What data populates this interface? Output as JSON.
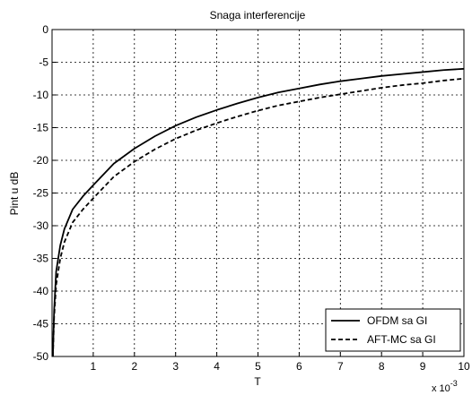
{
  "chart_data": {
    "type": "line",
    "title": "Snaga interferencije",
    "xlabel": "T",
    "ylabel": "Pint u dB",
    "x_multiplier": "x 10",
    "x_multiplier_exp": "-3",
    "xlim": [
      0,
      10
    ],
    "ylim": [
      -50,
      0
    ],
    "x_ticks": [
      1,
      2,
      3,
      4,
      5,
      6,
      7,
      8,
      9,
      10
    ],
    "y_ticks": [
      0,
      -5,
      -10,
      -15,
      -20,
      -25,
      -30,
      -35,
      -40,
      -45,
      -50
    ],
    "grid": true,
    "legend_location": "bottom-right",
    "series": [
      {
        "name": "OFDM sa GI",
        "style": "solid",
        "color": "#000000",
        "x": [
          0.02,
          0.05,
          0.1,
          0.2,
          0.3,
          0.5,
          0.75,
          1,
          1.5,
          2,
          2.5,
          3,
          3.5,
          4,
          4.5,
          5,
          5.5,
          6,
          6.5,
          7,
          7.5,
          8,
          8.5,
          9,
          9.5,
          10
        ],
        "y": [
          -50,
          -43,
          -37,
          -33,
          -30.5,
          -27.5,
          -25.5,
          -23.8,
          -20.5,
          -18.2,
          -16.3,
          -14.7,
          -13.4,
          -12.3,
          -11.3,
          -10.4,
          -9.6,
          -9.0,
          -8.4,
          -7.9,
          -7.5,
          -7.1,
          -6.8,
          -6.5,
          -6.2,
          -6.0
        ]
      },
      {
        "name": "AFT-MC sa GI",
        "style": "dashed",
        "color": "#000000",
        "x": [
          0.02,
          0.05,
          0.1,
          0.2,
          0.3,
          0.5,
          0.75,
          1,
          1.5,
          2,
          2.5,
          3,
          3.5,
          4,
          4.5,
          5,
          5.5,
          6,
          6.5,
          7,
          7.5,
          8,
          8.5,
          9,
          9.5,
          10
        ],
        "y": [
          -50,
          -44,
          -39,
          -35,
          -32.5,
          -29.5,
          -27.5,
          -25.8,
          -22.5,
          -20.2,
          -18.3,
          -16.7,
          -15.4,
          -14.3,
          -13.3,
          -12.4,
          -11.6,
          -11.0,
          -10.4,
          -9.9,
          -9.4,
          -8.9,
          -8.5,
          -8.2,
          -7.8,
          -7.5
        ]
      }
    ]
  }
}
